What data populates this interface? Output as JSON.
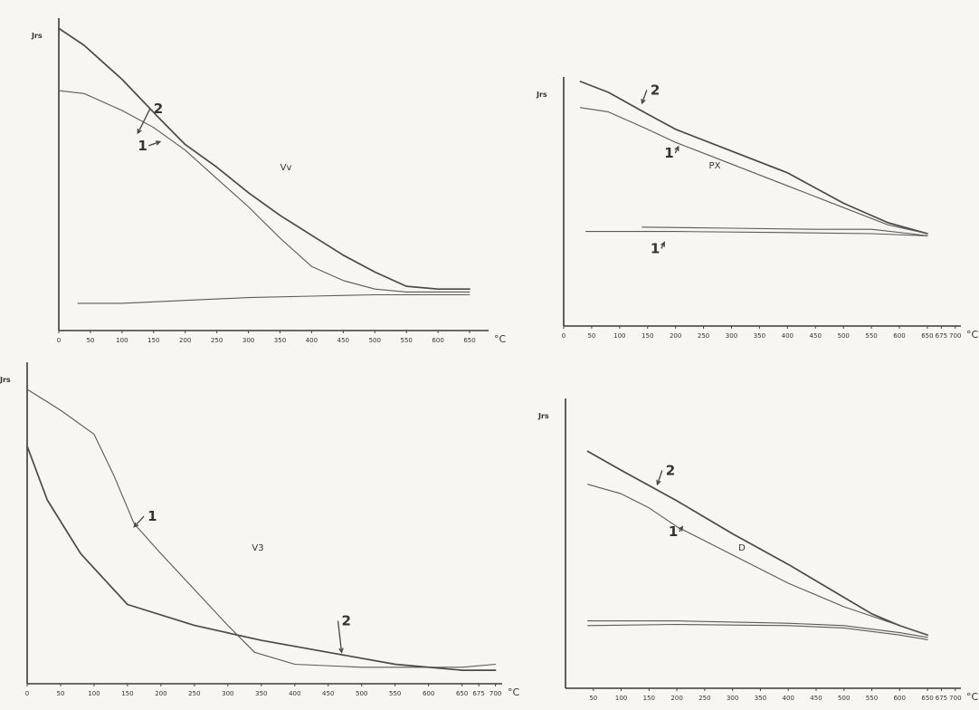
{
  "chart_data": [
    {
      "id": "vv",
      "type": "line",
      "title": "Vv",
      "ylabel": "Jrs",
      "xunit": "°C",
      "xticks": [
        0,
        50,
        100,
        150,
        200,
        250,
        300,
        350,
        400,
        450,
        500,
        550,
        600,
        650
      ],
      "xlim": [
        0,
        680
      ],
      "ylim": [
        0,
        100
      ],
      "grid": false,
      "series": [
        {
          "name": "2",
          "points": [
            [
              0,
              98
            ],
            [
              40,
              92
            ],
            [
              100,
              80
            ],
            [
              160,
              66
            ],
            [
              200,
              57
            ],
            [
              250,
              49
            ],
            [
              300,
              40
            ],
            [
              350,
              32
            ],
            [
              400,
              25
            ],
            [
              450,
              18
            ],
            [
              500,
              12
            ],
            [
              550,
              7
            ],
            [
              600,
              6
            ],
            [
              650,
              6
            ]
          ]
        },
        {
          "name": "1",
          "points": [
            [
              0,
              76
            ],
            [
              40,
              75
            ],
            [
              100,
              69
            ],
            [
              150,
              63
            ],
            [
              200,
              55
            ],
            [
              250,
              45
            ],
            [
              300,
              35
            ],
            [
              350,
              24
            ],
            [
              400,
              14
            ],
            [
              450,
              9
            ],
            [
              500,
              6
            ],
            [
              550,
              5
            ],
            [
              650,
              5
            ]
          ]
        },
        {
          "name": "",
          "points": [
            [
              30,
              1
            ],
            [
              100,
              1
            ],
            [
              200,
              2
            ],
            [
              300,
              3
            ],
            [
              400,
              3.5
            ],
            [
              500,
              4
            ],
            [
              650,
              4
            ]
          ]
        }
      ],
      "labels": [
        {
          "text": "2",
          "x": 150,
          "y": 68,
          "ax": 125,
          "ay": 61
        },
        {
          "text": "1",
          "x": 125,
          "y": 55,
          "ax": 160,
          "ay": 58
        }
      ]
    },
    {
      "id": "px",
      "type": "line",
      "title": "PX",
      "ylabel": "Jrs",
      "xunit": "°C",
      "xticks": [
        0,
        50,
        100,
        150,
        200,
        250,
        300,
        350,
        400,
        450,
        500,
        550,
        600,
        650,
        675,
        700
      ],
      "xlim": [
        0,
        710
      ],
      "ylim": [
        0,
        100
      ],
      "grid": false,
      "series": [
        {
          "name": "2",
          "points": [
            [
              30,
              100
            ],
            [
              80,
              95
            ],
            [
              150,
              85
            ],
            [
              200,
              78
            ],
            [
              300,
              68
            ],
            [
              400,
              58
            ],
            [
              500,
              44
            ],
            [
              580,
              35
            ],
            [
              650,
              30
            ]
          ]
        },
        {
          "name": "1",
          "points": [
            [
              30,
              88
            ],
            [
              80,
              86
            ],
            [
              150,
              78
            ],
            [
              200,
              72
            ],
            [
              300,
              62
            ],
            [
              400,
              52
            ],
            [
              500,
              42
            ],
            [
              580,
              34
            ],
            [
              650,
              30
            ]
          ]
        },
        {
          "name": "1",
          "points": [
            [
              40,
              31
            ],
            [
              200,
              31
            ],
            [
              400,
              30.5
            ],
            [
              550,
              30
            ],
            [
              650,
              29
            ]
          ]
        },
        {
          "name": "",
          "points": [
            [
              140,
              33
            ],
            [
              300,
              32.5
            ],
            [
              450,
              32
            ],
            [
              550,
              32
            ],
            [
              620,
              30
            ],
            [
              650,
              29
            ]
          ]
        }
      ],
      "labels": [
        {
          "text": "2",
          "x": 155,
          "y": 94,
          "ax": 140,
          "ay": 90
        },
        {
          "text": "1",
          "x": 180,
          "y": 65,
          "ax": 205,
          "ay": 70
        },
        {
          "text": "1",
          "x": 155,
          "y": 21,
          "ax": 180,
          "ay": 26
        }
      ]
    },
    {
      "id": "v3",
      "type": "line",
      "title": "V3",
      "ylabel": "Jrs",
      "xunit": "°C",
      "xticks": [
        0,
        50,
        100,
        150,
        200,
        250,
        300,
        350,
        400,
        450,
        500,
        550,
        600,
        650,
        675,
        700
      ],
      "xlim": [
        0,
        710
      ],
      "ylim": [
        0,
        100
      ],
      "grid": false,
      "series": [
        {
          "name": "1",
          "points": [
            [
              0,
              97
            ],
            [
              50,
              90
            ],
            [
              100,
              82
            ],
            [
              130,
              68
            ],
            [
              160,
              52
            ],
            [
              200,
              42
            ],
            [
              250,
              30
            ],
            [
              300,
              18
            ],
            [
              340,
              9
            ],
            [
              400,
              5
            ],
            [
              500,
              4
            ],
            [
              550,
              4
            ],
            [
              650,
              4
            ],
            [
              700,
              5
            ]
          ]
        },
        {
          "name": "2",
          "points": [
            [
              0,
              78
            ],
            [
              30,
              60
            ],
            [
              80,
              42
            ],
            [
              150,
              25
            ],
            [
              250,
              18
            ],
            [
              350,
              13
            ],
            [
              450,
              9
            ],
            [
              550,
              5
            ],
            [
              650,
              3
            ],
            [
              700,
              3
            ]
          ]
        }
      ],
      "labels": [
        {
          "text": "1",
          "x": 180,
          "y": 53,
          "ax": 160,
          "ay": 51
        },
        {
          "text": "2",
          "x": 470,
          "y": 18,
          "ax": 470,
          "ay": 9
        }
      ]
    },
    {
      "id": "d",
      "type": "line",
      "title": "D",
      "ylabel": "Jrs",
      "xunit": "°C",
      "xticks": [
        50,
        100,
        150,
        200,
        250,
        300,
        350,
        400,
        450,
        500,
        550,
        600,
        650,
        675,
        700
      ],
      "xlim": [
        0,
        710
      ],
      "ylim": [
        0,
        100
      ],
      "grid": false,
      "series": [
        {
          "name": "2",
          "points": [
            [
              40,
              96
            ],
            [
              100,
              88
            ],
            [
              200,
              75
            ],
            [
              300,
              61
            ],
            [
              400,
              48
            ],
            [
              500,
              34
            ],
            [
              550,
              27
            ],
            [
              600,
              22
            ],
            [
              650,
              18
            ]
          ]
        },
        {
          "name": "1",
          "points": [
            [
              40,
              82
            ],
            [
              100,
              78
            ],
            [
              150,
              72
            ],
            [
              200,
              64
            ],
            [
              300,
              52
            ],
            [
              400,
              40
            ],
            [
              500,
              30
            ],
            [
              550,
              26
            ],
            [
              600,
              22
            ],
            [
              650,
              18
            ]
          ]
        },
        {
          "name": "",
          "points": [
            [
              40,
              24
            ],
            [
              200,
              24
            ],
            [
              400,
              23
            ],
            [
              500,
              22
            ],
            [
              600,
              19
            ],
            [
              650,
              17
            ]
          ]
        },
        {
          "name": "",
          "points": [
            [
              40,
              22
            ],
            [
              200,
              22.5
            ],
            [
              400,
              22
            ],
            [
              500,
              21
            ],
            [
              600,
              18
            ],
            [
              650,
              16
            ]
          ]
        }
      ],
      "labels": [
        {
          "text": "2",
          "x": 180,
          "y": 86,
          "ax": 165,
          "ay": 82
        },
        {
          "text": "1",
          "x": 185,
          "y": 60,
          "ax": 210,
          "ay": 64
        }
      ]
    }
  ]
}
